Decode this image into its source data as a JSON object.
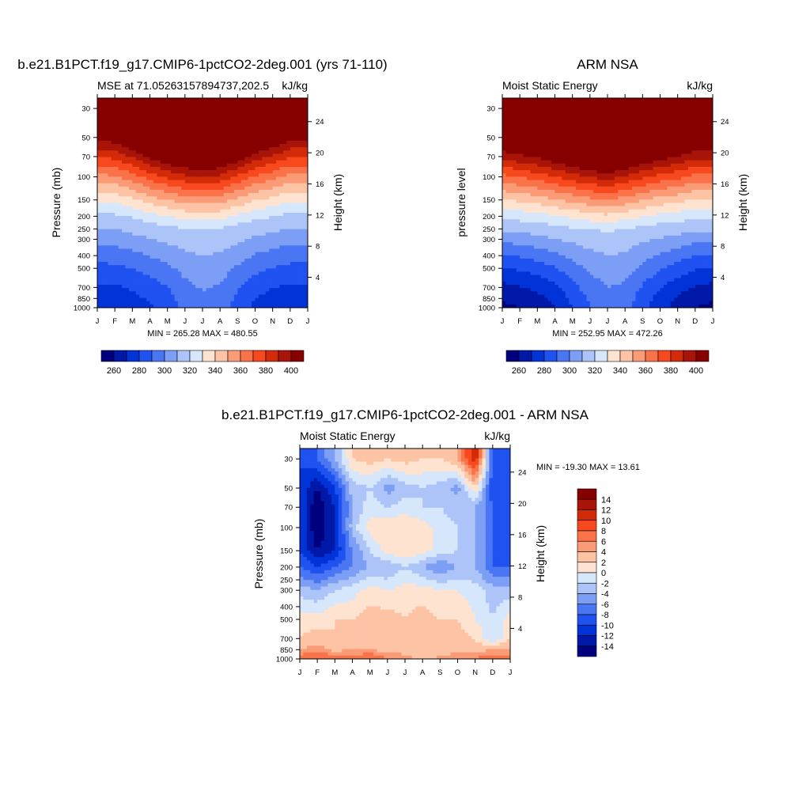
{
  "panels": [
    {
      "id": "model",
      "title": "b.e21.B1PCT.f19_g17.CMIP6-1pctCO2-2deg.001 (yrs 71-110)",
      "subtitle_left": "MSE at 71.05263157894737,202.5",
      "subtitle_right": "kJ/kg",
      "ylabel_left": "Pressure (mb)",
      "ylabel_right": "Height (km)",
      "minmax": "MIN = 265.28 MAX = 480.55"
    },
    {
      "id": "obs",
      "title": "ARM NSA",
      "subtitle_left": "Moist Static Energy",
      "subtitle_right": "kJ/kg",
      "ylabel_left": "pressure level",
      "ylabel_right": "Height (km)",
      "minmax": "MIN = 252.95 MAX = 472.26"
    },
    {
      "id": "diff",
      "title": "b.e21.B1PCT.f19_g17.CMIP6-1pctCO2-2deg.001 - ARM NSA",
      "subtitle_left": "Moist Static Energy",
      "subtitle_right": "kJ/kg",
      "ylabel_left": "Pressure (mb)",
      "ylabel_right": "Height (km)",
      "minmax": "MIN = -19.30 MAX =  13.61"
    }
  ],
  "chart_data": [
    {
      "type": "heatmap",
      "title": "b.e21.B1PCT.f19_g17.CMIP6-1pctCO2-2deg.001 (yrs 71-110)",
      "subtitle": "MSE at 71.05263157894737,202.5",
      "units": "kJ/kg",
      "x_ticks": [
        "J",
        "F",
        "M",
        "A",
        "M",
        "J",
        "J",
        "A",
        "S",
        "O",
        "N",
        "D",
        "J"
      ],
      "y_ticks_pressure": [
        30,
        50,
        70,
        100,
        150,
        200,
        250,
        300,
        400,
        500,
        700,
        850,
        1000
      ],
      "y_ticks_height": [
        24,
        20,
        16,
        12,
        8,
        4
      ],
      "ylabel": "Pressure (mb)",
      "ylabel_right": "Height (km)",
      "levels": [
        260,
        270,
        280,
        290,
        300,
        310,
        320,
        330,
        340,
        350,
        360,
        370,
        380,
        390,
        400
      ],
      "colorbar_labels": [
        "260",
        "280",
        "300",
        "320",
        "340",
        "360",
        "380",
        "400"
      ],
      "min": 265.28,
      "max": 480.55,
      "surface_value": [
        272,
        272,
        275,
        279,
        284,
        293,
        297,
        295,
        286,
        278,
        274,
        272,
        272
      ],
      "tropopause_pressure": [
        53,
        55,
        62,
        72,
        80,
        86,
        88,
        86,
        76,
        66,
        60,
        53,
        53
      ]
    },
    {
      "type": "heatmap",
      "title": "ARM NSA",
      "subtitle": "Moist Static Energy",
      "units": "kJ/kg",
      "x_ticks": [
        "J",
        "F",
        "M",
        "A",
        "M",
        "J",
        "J",
        "A",
        "S",
        "O",
        "N",
        "D",
        "J"
      ],
      "y_ticks_pressure": [
        30,
        50,
        70,
        100,
        150,
        200,
        250,
        300,
        400,
        500,
        700,
        850,
        1000
      ],
      "y_ticks_height": [
        24,
        20,
        16,
        12,
        8,
        4
      ],
      "ylabel": "pressure level",
      "ylabel_right": "Height (km)",
      "levels": [
        260,
        270,
        280,
        290,
        300,
        310,
        320,
        330,
        340,
        350,
        360,
        370,
        380,
        390,
        400
      ],
      "colorbar_labels": [
        "260",
        "280",
        "300",
        "320",
        "340",
        "360",
        "380",
        "400"
      ],
      "min": 252.95,
      "max": 472.26,
      "surface_value": [
        258,
        260,
        264,
        270,
        280,
        290,
        296,
        294,
        283,
        274,
        266,
        260,
        258
      ],
      "tropopause_pressure": [
        64,
        68,
        72,
        78,
        84,
        90,
        94,
        88,
        80,
        74,
        70,
        64,
        64
      ]
    },
    {
      "type": "heatmap",
      "title": "b.e21.B1PCT.f19_g17.CMIP6-1pctCO2-2deg.001 - ARM NSA",
      "subtitle": "Moist Static Energy",
      "units": "kJ/kg",
      "x_ticks": [
        "J",
        "F",
        "M",
        "A",
        "M",
        "J",
        "J",
        "A",
        "S",
        "O",
        "N",
        "D",
        "J"
      ],
      "y_ticks_pressure": [
        30,
        50,
        70,
        100,
        150,
        200,
        250,
        300,
        400,
        500,
        700,
        850,
        1000
      ],
      "y_ticks_height": [
        24,
        20,
        16,
        12,
        8,
        4
      ],
      "ylabel": "Pressure (mb)",
      "ylabel_right": "Height (km)",
      "levels": [
        -14,
        -12,
        -10,
        -8,
        -6,
        -4,
        -2,
        0,
        2,
        4,
        6,
        8,
        10,
        12,
        14
      ],
      "colorbar_labels": [
        "14",
        "12",
        "10",
        "8",
        "6",
        "4",
        "2",
        "0",
        "-2",
        "-4",
        "-6",
        "-8",
        "-10",
        "-12",
        "-14"
      ],
      "min": -19.3,
      "max": 13.61,
      "months": [
        0,
        1,
        2,
        3,
        4,
        5,
        6,
        7,
        8,
        9,
        10,
        11,
        12
      ],
      "pressure_levels": [
        30,
        50,
        70,
        100,
        150,
        200,
        300,
        500,
        700,
        850,
        1000
      ],
      "values": [
        [
          -10,
          -8,
          -4,
          2,
          3,
          2,
          3,
          2,
          2,
          4,
          12,
          -8,
          -10
        ],
        [
          -10,
          -14,
          -10,
          -3,
          -2,
          -5,
          -3,
          -2,
          -3,
          -5,
          2,
          -10,
          -10
        ],
        [
          -10,
          -16,
          -12,
          -4,
          -1,
          -2,
          -1,
          -2,
          -2,
          -3,
          -4,
          -8,
          -10
        ],
        [
          -10,
          -16,
          -12,
          -3,
          1,
          2,
          2,
          1,
          -1,
          -2,
          -4,
          -8,
          -10
        ],
        [
          -10,
          -14,
          -12,
          -6,
          -2,
          1,
          2,
          1,
          -1,
          -2,
          -4,
          -8,
          -10
        ],
        [
          -8,
          -10,
          -8,
          -6,
          -4,
          -4,
          -2,
          -4,
          -6,
          -4,
          -4,
          -8,
          -8
        ],
        [
          -3,
          -4,
          -2,
          -1,
          1,
          0,
          1,
          1,
          0,
          0,
          -1,
          -3,
          -3
        ],
        [
          1,
          1,
          2,
          2,
          3,
          3,
          2,
          3,
          2,
          2,
          0,
          -2,
          1
        ],
        [
          2,
          3,
          2,
          3,
          3,
          2,
          2,
          2,
          3,
          3,
          2,
          -2,
          2
        ],
        [
          4,
          5,
          3,
          4,
          4,
          3,
          3,
          2,
          2,
          3,
          3,
          4,
          4
        ],
        [
          8,
          8,
          9,
          7,
          9,
          6,
          5,
          3,
          5,
          6,
          6,
          8,
          8
        ]
      ]
    }
  ],
  "colors": {
    "diverging_15": [
      "#00007f",
      "#0019a8",
      "#0033d8",
      "#1f52f0",
      "#4a76f3",
      "#7d9ef5",
      "#adc4f8",
      "#d6e6fb",
      "#fde3d0",
      "#fdc3a5",
      "#fa9b77",
      "#fa7249",
      "#f7481e",
      "#d32b09",
      "#a81508",
      "#860000"
    ]
  }
}
